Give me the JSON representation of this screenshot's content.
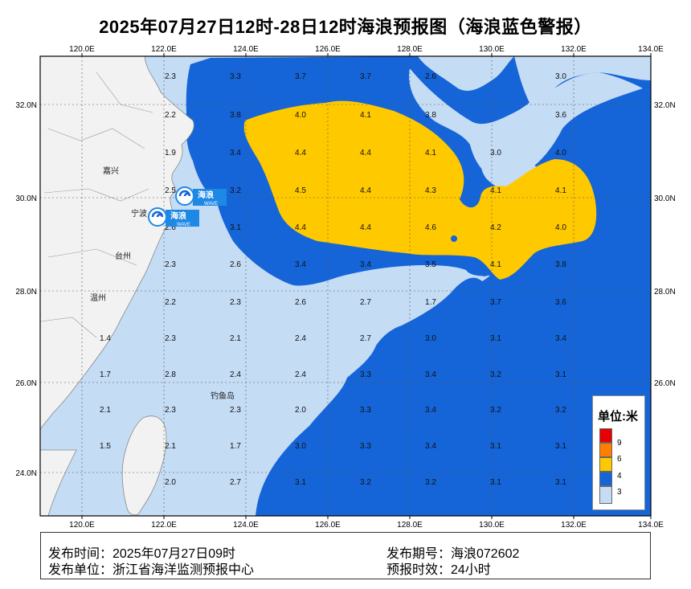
{
  "title": "2025年07月27日12时-28日12时海浪预报图（海浪蓝色警报）",
  "colors": {
    "level_below3": "#c5dcf5",
    "level_3_4": "#1565d8",
    "level_4_6": "#ffc900",
    "level_6_9": "#ff7e00",
    "level_9plus": "#e60000",
    "land": "#f2f2f2",
    "grid": "#555555"
  },
  "axes": {
    "lon_labels": [
      "120.0E",
      "122.0E",
      "124.0E",
      "126.0E",
      "128.0E",
      "130.0E",
      "132.0E",
      "134.0E"
    ],
    "lat_labels": [
      "32.0N",
      "30.0N",
      "28.0N",
      "26.0N",
      "24.0N"
    ]
  },
  "cities": [
    "嘉兴",
    "宁波",
    "台州",
    "温州",
    "钓鱼岛"
  ],
  "wave_badges": [
    {
      "label": "海浪",
      "sub": "WAVE",
      "icon": "typhoon-wave-icon"
    },
    {
      "label": "海浪",
      "sub": "WAVE",
      "icon": "typhoon-wave-icon"
    }
  ],
  "grid_values": [
    [
      "2.3",
      "3.3",
      "3.7",
      "3.7",
      "2.6",
      "",
      "3.0"
    ],
    [
      "2.2",
      "3.8",
      "4.0",
      "4.1",
      "3.8",
      "",
      "3.6"
    ],
    [
      "1.9",
      "3.4",
      "4.4",
      "4.4",
      "4.1",
      "3.0",
      "4.0"
    ],
    [
      "2.5",
      "3.2",
      "4.5",
      "4.4",
      "4.3",
      "4.1",
      "4.1"
    ],
    [
      "2.6",
      "3.1",
      "4.4",
      "4.4",
      "4.6",
      "4.2",
      "4.0"
    ],
    [
      "2.3",
      "2.6",
      "3.4",
      "3.4",
      "3.5",
      "4.1",
      "3.8"
    ],
    [
      "2.2",
      "2.3",
      "2.6",
      "2.7",
      "1.7",
      "3.7",
      "3.6"
    ],
    [
      "2.3",
      "2.1",
      "2.4",
      "2.7",
      "3.0",
      "3.1",
      "3.4"
    ],
    [
      "2.8",
      "2.4",
      "2.4",
      "3.3",
      "3.4",
      "3.2",
      "3.1"
    ],
    [
      "2.3",
      "2.3",
      "2.0",
      "3.3",
      "3.4",
      "3.2",
      "3.2"
    ],
    [
      "2.1",
      "1.7",
      "3.0",
      "3.3",
      "3.4",
      "3.1",
      "3.1"
    ],
    [
      "2.0",
      "2.7",
      "3.1",
      "3.2",
      "3.2",
      "3.1",
      "3.1"
    ]
  ],
  "west_values": [
    "1.4",
    "1.7",
    "2.1",
    "1.5"
  ],
  "legend": {
    "title": "单位:米",
    "labels": [
      "9",
      "6",
      "4",
      "3"
    ]
  },
  "info": {
    "issue_time": "发布时间：2025年07月27日09时",
    "issuer": "发布单位：浙江省海洋监测预报中心",
    "issue_no": "发布期号：海浪072602",
    "validity": "预报时效：24小时"
  }
}
